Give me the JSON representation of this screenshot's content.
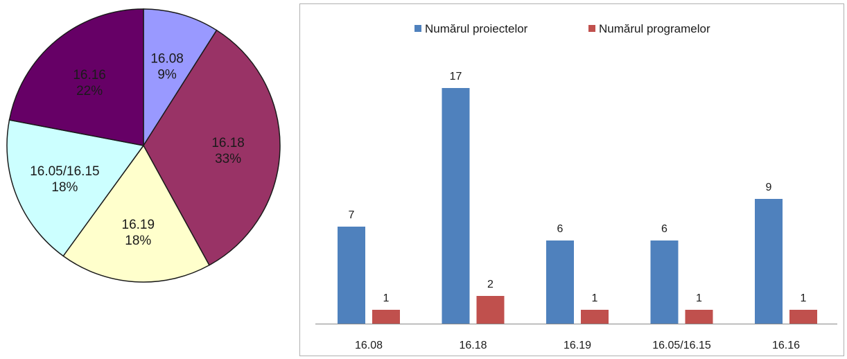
{
  "chart_data": [
    {
      "type": "pie",
      "slices": [
        {
          "label": "16.08",
          "value": 9,
          "pct_label": "9%",
          "color": "#9999ff"
        },
        {
          "label": "16.18",
          "value": 33,
          "pct_label": "33%",
          "color": "#993366"
        },
        {
          "label": "16.19",
          "value": 18,
          "pct_label": "18%",
          "color": "#ffffcc"
        },
        {
          "label": "16.05/16.15",
          "value": 18,
          "pct_label": "18%",
          "color": "#ccffff"
        },
        {
          "label": "16.16",
          "value": 22,
          "pct_label": "22%",
          "color": "#660066"
        }
      ],
      "start": "top",
      "direction": "clockwise"
    },
    {
      "type": "bar",
      "categories": [
        "16.08",
        "16.18",
        "16.19",
        "16.05/16.15",
        "16.16"
      ],
      "series": [
        {
          "name": "Numărul proiectelor",
          "values": [
            7,
            17,
            6,
            6,
            9
          ],
          "color": "#4f81bd"
        },
        {
          "name": "Numărul programelor",
          "values": [
            1,
            2,
            1,
            1,
            1
          ],
          "color": "#c0504d"
        }
      ],
      "ylim": [
        0,
        18
      ],
      "grid": false,
      "legend": "top-center",
      "data_labels": true
    }
  ]
}
